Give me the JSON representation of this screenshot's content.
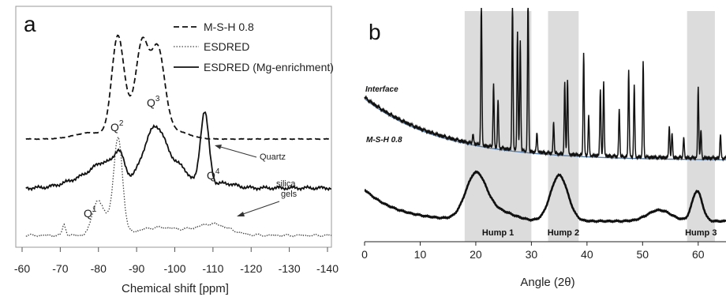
{
  "chart_data": [
    {
      "panel": "a",
      "type": "line",
      "xlabel": "Chemical shift [ppm]",
      "xlim": [
        -60,
        -140
      ],
      "xticks": [
        "-60",
        "-70",
        "-80",
        "-90",
        "-100",
        "-110",
        "-120",
        "-130",
        "-140"
      ],
      "legend_position": "top-right",
      "series": [
        {
          "name": "M-S-H 0.8",
          "style": "dashed",
          "peaks": [
            {
              "x": -85,
              "height": 1.0
            },
            {
              "x": -93,
              "height": 0.95
            },
            {
              "x": -95,
              "height": 0.95
            }
          ]
        },
        {
          "name": "ESDRED",
          "style": "dotted",
          "peaks": [
            {
              "x": -71,
              "height": 0.15
            },
            {
              "x": -79,
              "height": 0.35
            },
            {
              "x": -85,
              "height": 1.0
            },
            {
              "x": -110,
              "height": 0.2
            }
          ]
        },
        {
          "name": "ESDRED (Mg-enrichment)",
          "style": "solid",
          "peaks": [
            {
              "x": -85,
              "height": 0.6
            },
            {
              "x": -95,
              "height": 0.8
            },
            {
              "x": -108,
              "height": 1.0
            }
          ]
        }
      ],
      "annotations": [
        {
          "text": "Q",
          "sup": "2",
          "x": -84
        },
        {
          "text": "Q",
          "sup": "3",
          "x": -96
        },
        {
          "text": "Q",
          "sup": "1",
          "x": -77
        },
        {
          "text": "Q",
          "sup": "4",
          "x": -111
        },
        {
          "text": "Quartz",
          "x": -119
        },
        {
          "text": "silica",
          "x": -124
        },
        {
          "text": "gels",
          "x": -124
        }
      ]
    },
    {
      "panel": "b",
      "type": "line",
      "xlabel": "Angle (2θ)",
      "xlim": [
        0,
        65
      ],
      "xticks": [
        "0",
        "10",
        "20",
        "30",
        "40",
        "50",
        "60"
      ],
      "series": [
        {
          "name": "Interface"
        },
        {
          "name": "M-S-H 0.8"
        }
      ],
      "shaded_regions": [
        {
          "label": "Hump 1",
          "x": [
            18,
            30
          ]
        },
        {
          "label": "Hump 2",
          "x": [
            33,
            38.5
          ]
        },
        {
          "label": "Hump 3",
          "x": [
            58,
            63
          ]
        }
      ],
      "interface_peaks": [
        19.5,
        21,
        23.2,
        24,
        26.6,
        27.5,
        28,
        29.4,
        31,
        34,
        36,
        36.5,
        39.4,
        40.3,
        42.4,
        43,
        45.8,
        47.5,
        48.5,
        50.1,
        54.8,
        55.3,
        57.4,
        60,
        60.5,
        64
      ]
    }
  ]
}
